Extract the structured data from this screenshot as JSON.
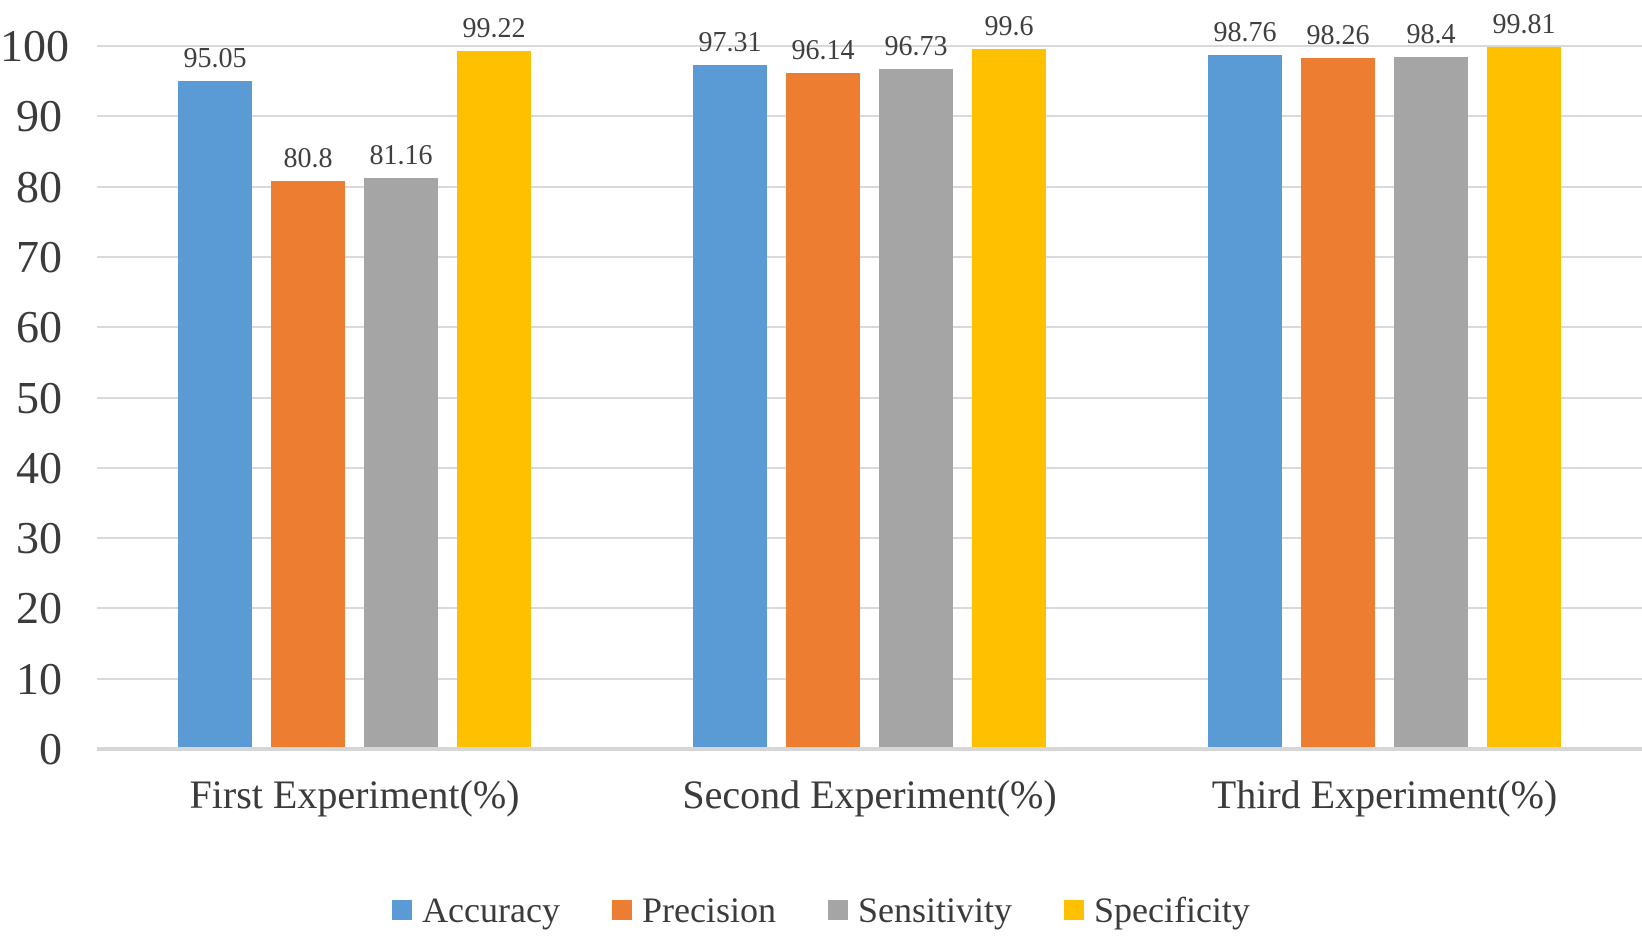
{
  "chart_data": {
    "type": "bar",
    "title": "",
    "categories": [
      "First Experiment(%)",
      "Second Experiment(%)",
      "Third Experiment(%)"
    ],
    "series": [
      {
        "name": "Accuracy",
        "color": "#5B9BD5",
        "values": [
          95.05,
          97.31,
          98.76
        ],
        "value_labels": [
          "95.05",
          "97.31",
          "98.76"
        ]
      },
      {
        "name": "Precision",
        "color": "#ED7D31",
        "values": [
          80.8,
          96.14,
          98.26
        ],
        "value_labels": [
          "80.8",
          "96.14",
          "98.26"
        ]
      },
      {
        "name": "Sensitivity",
        "color": "#A5A5A5",
        "values": [
          81.16,
          96.73,
          98.4
        ],
        "value_labels": [
          "81.16",
          "96.73",
          "98.4"
        ]
      },
      {
        "name": "Specificity",
        "color": "#FFC000",
        "values": [
          99.22,
          99.6,
          99.81
        ],
        "value_labels": [
          "99.22",
          "99.6",
          "99.81"
        ]
      }
    ],
    "y_axis": {
      "min": 0,
      "max": 100,
      "step": 10,
      "tick_labels": [
        "0",
        "10",
        "20",
        "30",
        "40",
        "50",
        "60",
        "70",
        "80",
        "90",
        "100"
      ]
    },
    "xlabel": "",
    "ylabel": "",
    "grid": true,
    "legend_position": "bottom",
    "colors": {
      "gridline": "#D9D9D9",
      "axis_line": "#D6D6D6",
      "text": "#3B3B3B"
    }
  }
}
